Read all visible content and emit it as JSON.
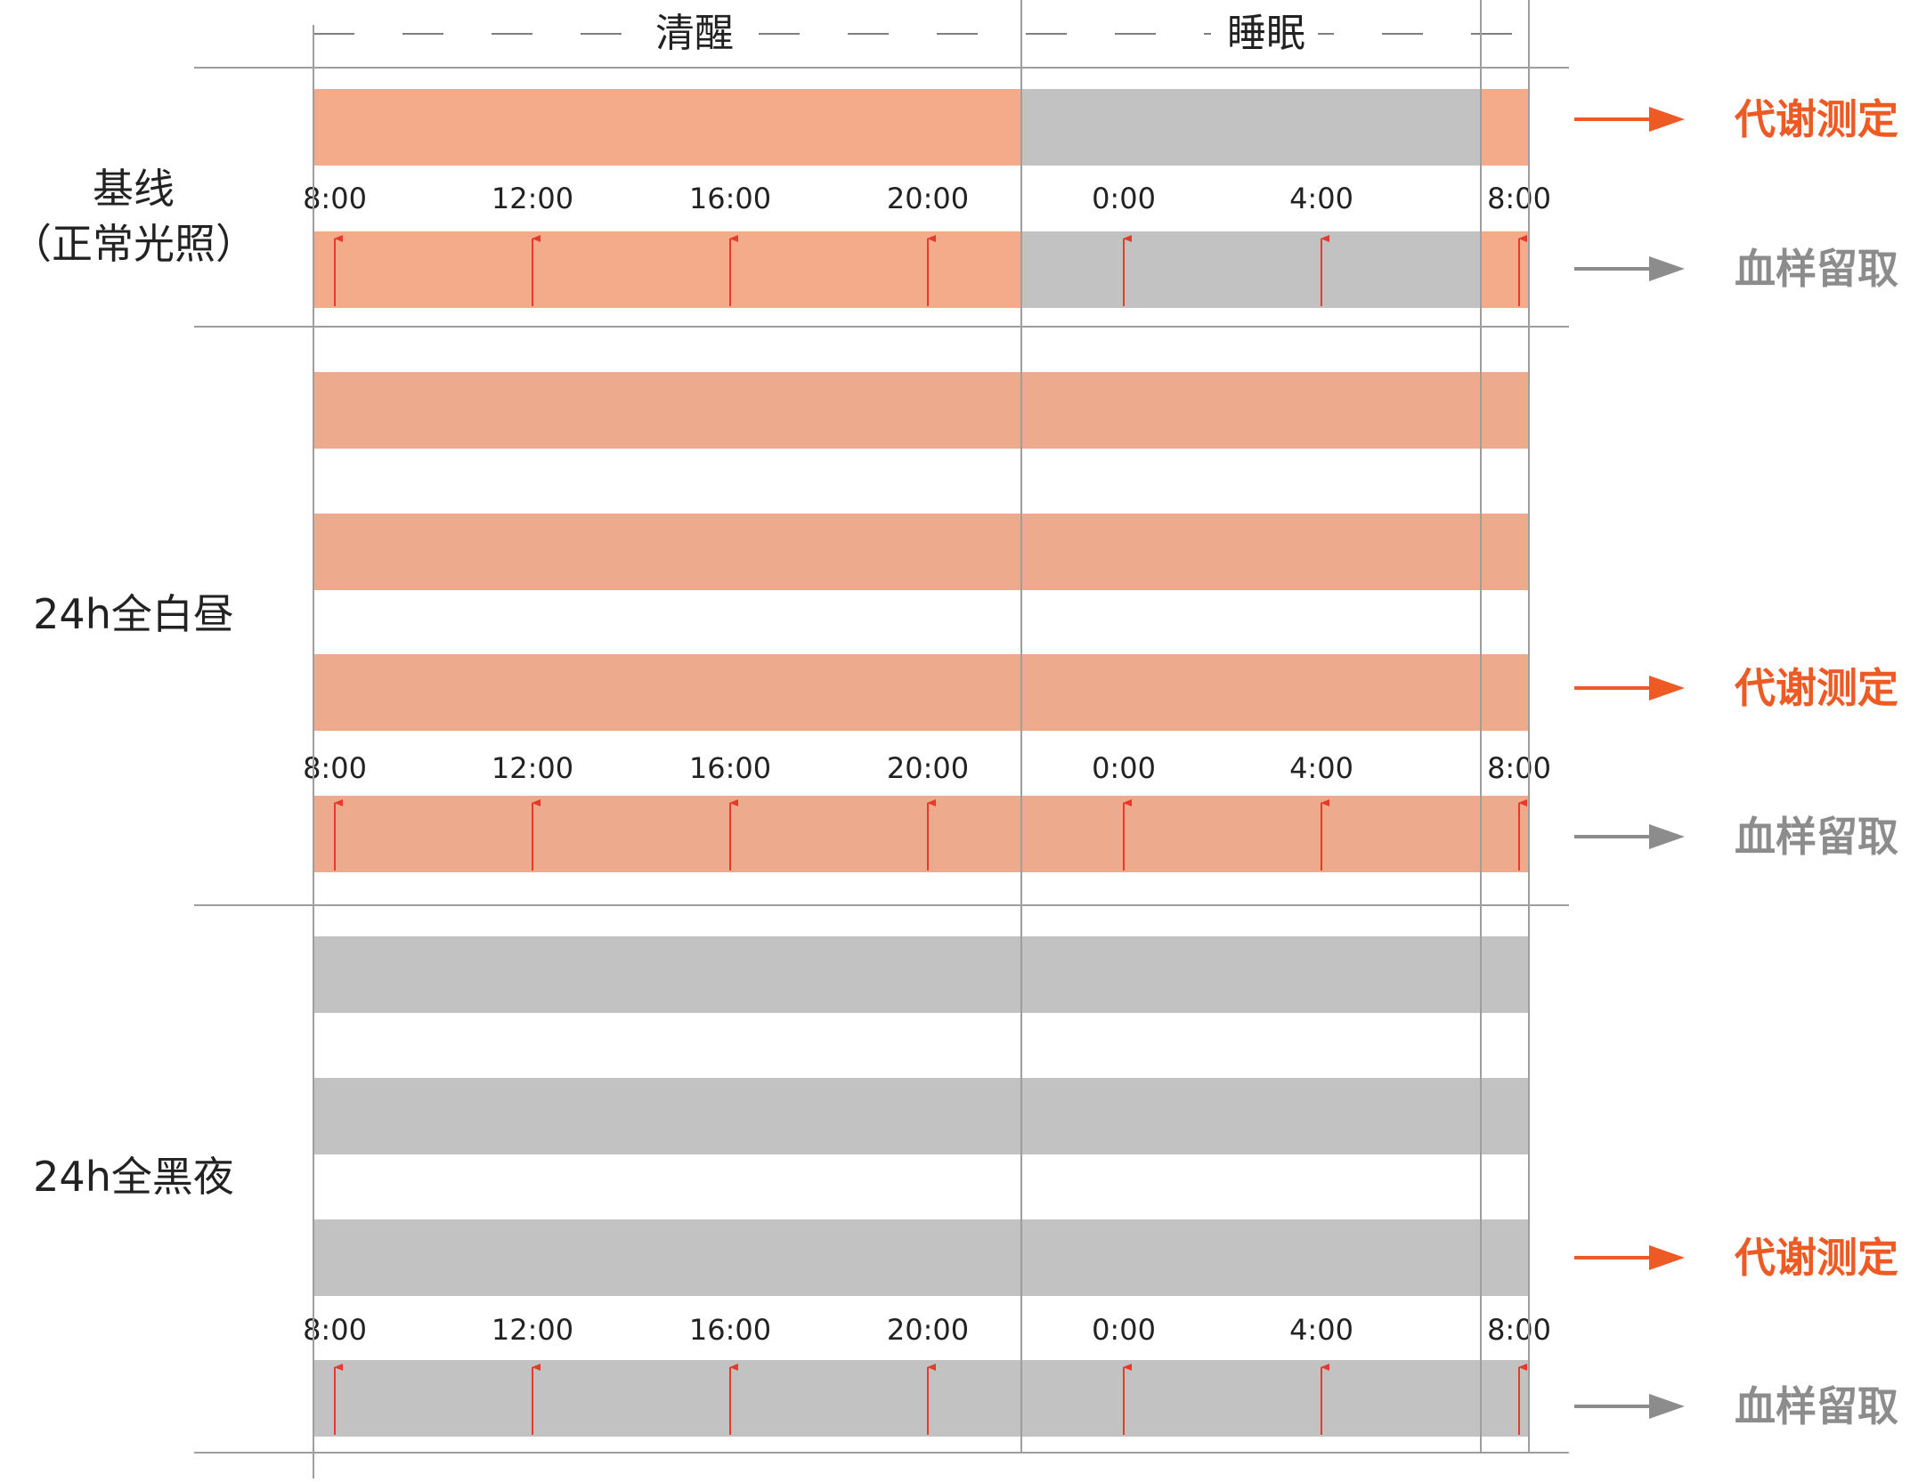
{
  "header": {
    "wake_label": "清醒",
    "sleep_label": "睡眠"
  },
  "conditions": [
    {
      "label_lines": [
        "基线",
        "（正常光照）"
      ],
      "bar_pattern": "light-dark",
      "metabolic_bars": 1,
      "times": [
        "8:00",
        "12:00",
        "16:00",
        "20:00",
        "0:00",
        "4:00",
        "8:00"
      ],
      "metabolic_label": "代谢测定",
      "blood_label": "血样留取"
    },
    {
      "label_lines": [
        "24h全白昼"
      ],
      "bar_pattern": "all-light",
      "metabolic_bars": 3,
      "times": [
        "8:00",
        "12:00",
        "16:00",
        "20:00",
        "0:00",
        "4:00",
        "8:00"
      ],
      "metabolic_label": "代谢测定",
      "blood_label": "血样留取"
    },
    {
      "label_lines": [
        "24h全黑夜"
      ],
      "bar_pattern": "all-dark",
      "metabolic_bars": 3,
      "times": [
        "8:00",
        "12:00",
        "16:00",
        "20:00",
        "0:00",
        "4:00",
        "8:00"
      ],
      "metabolic_label": "代谢测定",
      "blood_label": "血样留取"
    }
  ],
  "colors": {
    "light_bar": "#F4AB8A",
    "light_bar_alt": "#EDAA8C",
    "dark_bar": "#C2C2C2",
    "sample_arrow": "#E8392A",
    "metabolic_accent": "#EE5A24",
    "blood_accent": "#8C8C8C",
    "grid": "#9E9E9E",
    "text": "#222222"
  }
}
